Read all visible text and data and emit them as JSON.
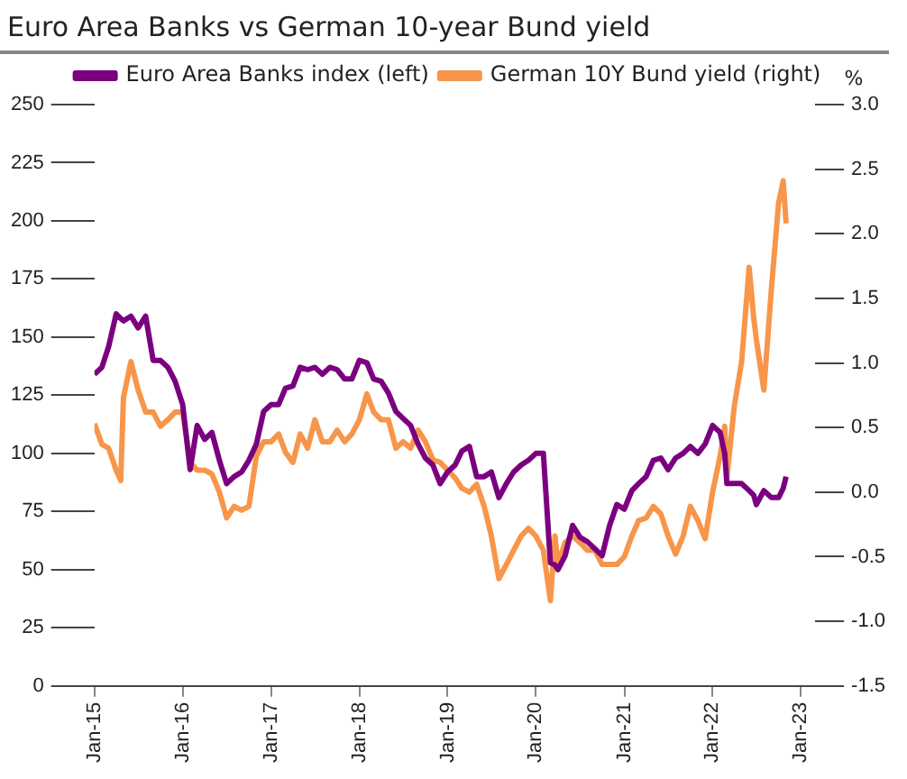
{
  "chart_data": {
    "type": "line",
    "title": "Euro Area Banks vs German 10-year Bund yield",
    "y2label": "%",
    "x": [
      "2015-01",
      "2015-02",
      "2015-03",
      "2015-04",
      "2015-04-20",
      "2015-05",
      "2015-06",
      "2015-07",
      "2015-08",
      "2015-09",
      "2015-10",
      "2015-11",
      "2015-12",
      "2016-01",
      "2016-02",
      "2016-03",
      "2016-04",
      "2016-05",
      "2016-06",
      "2016-07",
      "2016-08",
      "2016-09",
      "2016-10",
      "2016-11",
      "2016-12",
      "2017-01",
      "2017-02",
      "2017-03",
      "2017-04",
      "2017-05",
      "2017-06",
      "2017-07",
      "2017-08",
      "2017-09",
      "2017-10",
      "2017-11",
      "2017-12",
      "2018-01",
      "2018-02",
      "2018-03",
      "2018-04",
      "2018-05",
      "2018-06",
      "2018-07",
      "2018-08",
      "2018-09",
      "2018-10",
      "2018-11",
      "2018-12",
      "2019-01",
      "2019-02",
      "2019-03",
      "2019-04",
      "2019-05",
      "2019-06",
      "2019-07",
      "2019-08",
      "2019-09",
      "2019-10",
      "2019-11",
      "2019-12",
      "2020-01",
      "2020-02",
      "2020-03",
      "2020-03-20",
      "2020-04",
      "2020-05",
      "2020-06",
      "2020-07",
      "2020-08",
      "2020-09",
      "2020-10",
      "2020-11",
      "2020-12",
      "2021-01",
      "2021-02",
      "2021-03",
      "2021-04",
      "2021-05",
      "2021-06",
      "2021-07",
      "2021-08",
      "2021-09",
      "2021-10",
      "2021-11",
      "2021-12",
      "2022-01",
      "2022-02",
      "2022-02-20",
      "2022-03",
      "2022-04",
      "2022-05",
      "2022-06",
      "2022-06-20",
      "2022-07",
      "2022-08",
      "2022-09",
      "2022-10",
      "2022-10-20",
      "2022-11"
    ],
    "series": [
      {
        "name": "Euro Area Banks index (left)",
        "color": "#7b0080",
        "values": [
          134,
          137,
          146,
          160,
          158,
          157,
          159,
          154,
          159,
          140,
          140,
          137,
          131,
          121,
          93,
          112,
          106,
          109,
          97,
          87,
          90,
          92,
          97,
          104,
          118,
          121,
          121,
          128,
          129,
          137,
          136,
          137,
          134,
          137,
          136,
          132,
          132,
          140,
          139,
          132,
          131,
          126,
          118,
          115,
          112,
          104,
          98,
          95,
          87,
          92,
          95,
          101,
          103,
          90,
          90,
          92,
          81,
          87,
          92,
          95,
          97,
          100,
          100,
          53,
          52,
          50,
          56,
          69,
          64,
          62,
          59,
          56,
          69,
          78,
          76,
          84,
          87,
          90,
          97,
          98,
          93,
          98,
          100,
          103,
          100,
          104,
          112,
          109,
          100,
          87,
          87,
          87,
          84,
          82,
          78,
          84,
          81,
          81,
          85,
          90
        ]
      },
      {
        "name": "German 10Y Bund yield (right)",
        "color": "#f7964a",
        "axis": "y2",
        "values": [
          0.53,
          0.37,
          0.34,
          0.17,
          0.09,
          0.73,
          1.01,
          0.79,
          0.62,
          0.62,
          0.51,
          0.56,
          0.62,
          0.62,
          0.23,
          0.17,
          0.17,
          0.14,
          0.0,
          -0.2,
          -0.11,
          -0.14,
          -0.11,
          0.28,
          0.39,
          0.39,
          0.45,
          0.31,
          0.23,
          0.45,
          0.34,
          0.56,
          0.39,
          0.39,
          0.48,
          0.39,
          0.45,
          0.56,
          0.76,
          0.62,
          0.56,
          0.56,
          0.34,
          0.39,
          0.34,
          0.48,
          0.39,
          0.25,
          0.23,
          0.17,
          0.11,
          0.03,
          0.0,
          0.06,
          -0.11,
          -0.34,
          -0.67,
          -0.56,
          -0.45,
          -0.34,
          -0.28,
          -0.34,
          -0.45,
          -0.84,
          -0.34,
          -0.56,
          -0.39,
          -0.34,
          -0.39,
          -0.45,
          -0.45,
          -0.56,
          -0.56,
          -0.56,
          -0.5,
          -0.34,
          -0.22,
          -0.2,
          -0.11,
          -0.17,
          -0.34,
          -0.48,
          -0.34,
          -0.11,
          -0.22,
          -0.36,
          0.0,
          0.28,
          0.51,
          0.11,
          0.67,
          1.01,
          1.74,
          1.35,
          1.18,
          0.79,
          1.57,
          2.24,
          2.41,
          2.08
        ]
      }
    ],
    "xlim": [
      "2015-01",
      "2023-03"
    ],
    "xticks": [
      {
        "value": "2015-01",
        "label": "Jan-15"
      },
      {
        "value": "2016-01",
        "label": "Jan-16"
      },
      {
        "value": "2017-01",
        "label": "Jan-17"
      },
      {
        "value": "2018-01",
        "label": "Jan-18"
      },
      {
        "value": "2019-01",
        "label": "Jan-19"
      },
      {
        "value": "2020-01",
        "label": "Jan-20"
      },
      {
        "value": "2021-01",
        "label": "Jan-21"
      },
      {
        "value": "2022-01",
        "label": "Jan-22"
      },
      {
        "value": "2023-01",
        "label": "Jan-23"
      }
    ],
    "ylim": [
      0,
      250
    ],
    "yticks": [
      0,
      25,
      50,
      75,
      100,
      125,
      150,
      175,
      200,
      225,
      250
    ],
    "y2lim": [
      -1.5,
      3.0
    ],
    "y2ticks": [
      {
        "value": -1.5,
        "label": "-1.5"
      },
      {
        "value": -1.0,
        "label": "-1.0"
      },
      {
        "value": -0.5,
        "label": "-0.5"
      },
      {
        "value": 0,
        "label": "0.0"
      },
      {
        "value": 0.5,
        "label": "0.5"
      },
      {
        "value": 1.0,
        "label": "1.0"
      },
      {
        "value": 1.5,
        "label": "1.5"
      },
      {
        "value": 2.0,
        "label": "2.0"
      },
      {
        "value": 2.5,
        "label": "2.5"
      },
      {
        "value": 3.0,
        "label": "3.0"
      }
    ],
    "grid": false,
    "legend": "top",
    "marker": "none",
    "line_style": "solid"
  }
}
